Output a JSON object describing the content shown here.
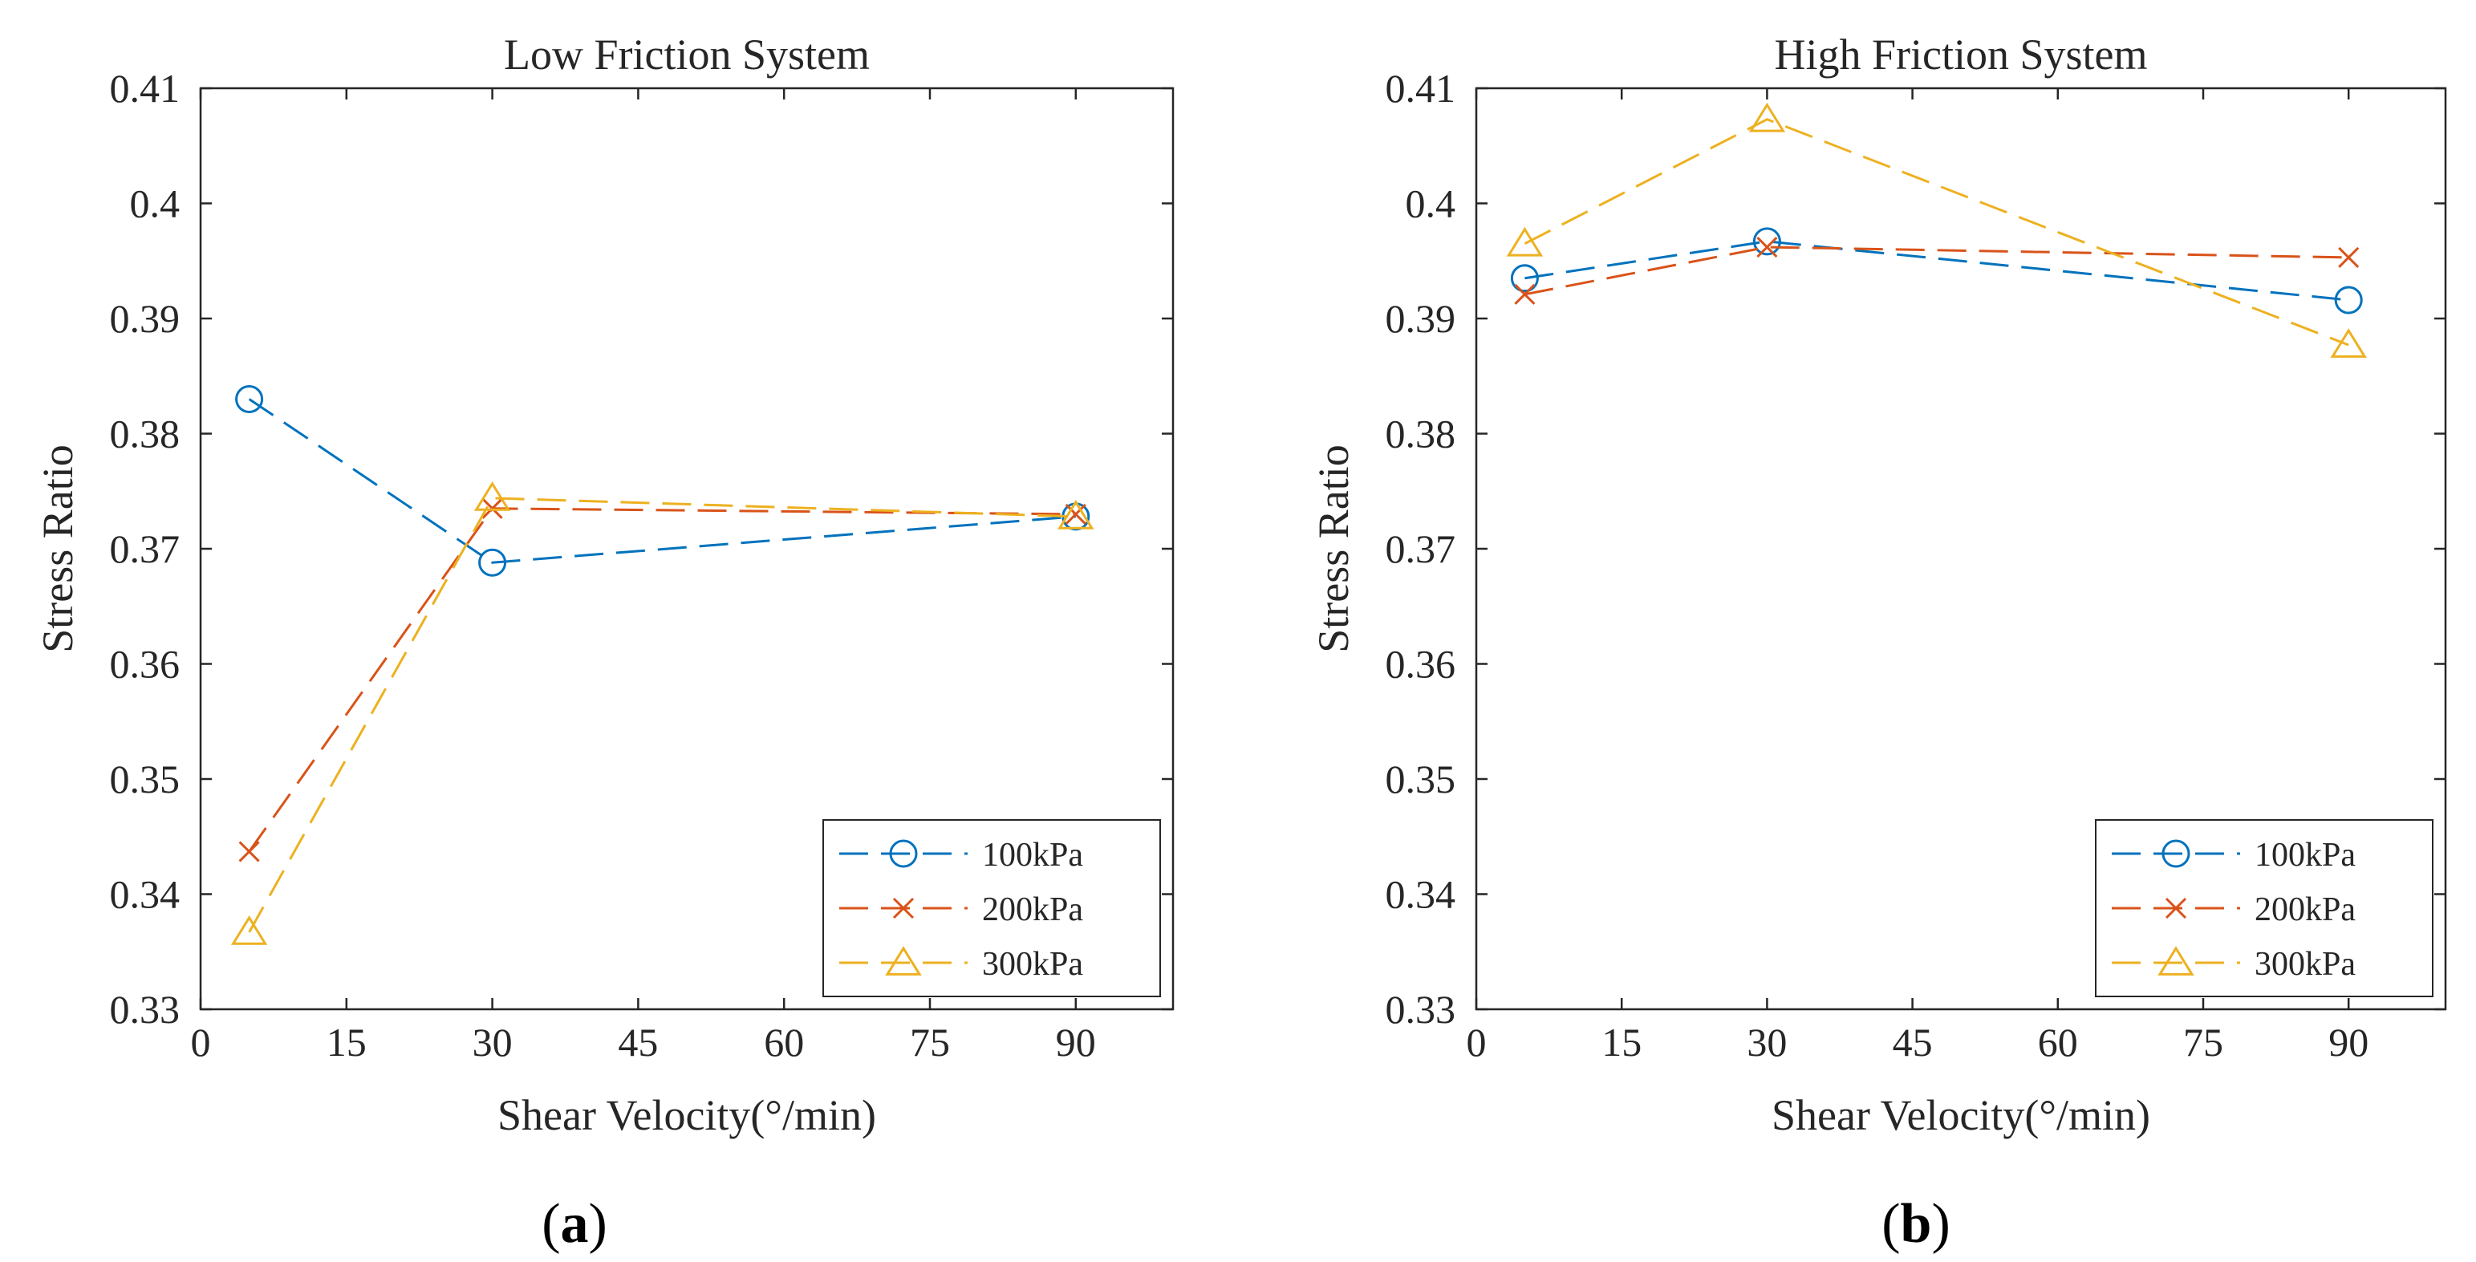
{
  "chart_data": [
    {
      "type": "line",
      "title": "Low Friction System",
      "xlabel": "Shear Velocity(°/min)",
      "ylabel": "Stress Ratio",
      "xlim": [
        0,
        100
      ],
      "ylim": [
        0.33,
        0.41
      ],
      "xticks": [
        0,
        15,
        30,
        45,
        60,
        75,
        90
      ],
      "yticks": [
        0.33,
        0.34,
        0.35,
        0.36,
        0.37,
        0.38,
        0.39,
        0.4,
        0.41
      ],
      "xtick_labels": [
        "0",
        "15",
        "30",
        "45",
        "60",
        "75",
        "90"
      ],
      "ytick_labels": [
        "0.33",
        "0.34",
        "0.35",
        "0.36",
        "0.37",
        "0.38",
        "0.39",
        "0.4",
        "0.41"
      ],
      "x": [
        5,
        30,
        90
      ],
      "legend_position": "bottom-right",
      "panel_label": {
        "open": "(",
        "letter": "a",
        "close": ")"
      },
      "series": [
        {
          "name": "100kPa",
          "marker": "circle",
          "color": "#0072BD",
          "values": [
            0.383,
            0.3688,
            0.3728
          ]
        },
        {
          "name": "200kPa",
          "marker": "x",
          "color": "#D95319",
          "values": [
            0.3437,
            0.3735,
            0.373
          ]
        },
        {
          "name": "300kPa",
          "marker": "triangle",
          "color": "#EDB120",
          "values": [
            0.3367,
            0.3744,
            0.3728
          ]
        }
      ]
    },
    {
      "type": "line",
      "title": "High Friction System",
      "xlabel": "Shear Velocity(°/min)",
      "ylabel": "Stress Ratio",
      "xlim": [
        0,
        100
      ],
      "ylim": [
        0.33,
        0.41
      ],
      "xticks": [
        0,
        15,
        30,
        45,
        60,
        75,
        90
      ],
      "yticks": [
        0.33,
        0.34,
        0.35,
        0.36,
        0.37,
        0.38,
        0.39,
        0.4,
        0.41
      ],
      "xtick_labels": [
        "0",
        "15",
        "30",
        "45",
        "60",
        "75",
        "90"
      ],
      "ytick_labels": [
        "0.33",
        "0.34",
        "0.35",
        "0.36",
        "0.37",
        "0.38",
        "0.39",
        "0.4",
        "0.41"
      ],
      "x": [
        5,
        30,
        90
      ],
      "legend_position": "bottom-right",
      "panel_label": {
        "open": "(",
        "letter": "b",
        "close": ")"
      },
      "series": [
        {
          "name": "100kPa",
          "marker": "circle",
          "color": "#0072BD",
          "values": [
            0.3935,
            0.3967,
            0.3916
          ]
        },
        {
          "name": "200kPa",
          "marker": "x",
          "color": "#D95319",
          "values": [
            0.3921,
            0.3962,
            0.3953
          ]
        },
        {
          "name": "300kPa",
          "marker": "triangle",
          "color": "#EDB120",
          "values": [
            0.3965,
            0.4073,
            0.3877
          ]
        }
      ]
    }
  ]
}
